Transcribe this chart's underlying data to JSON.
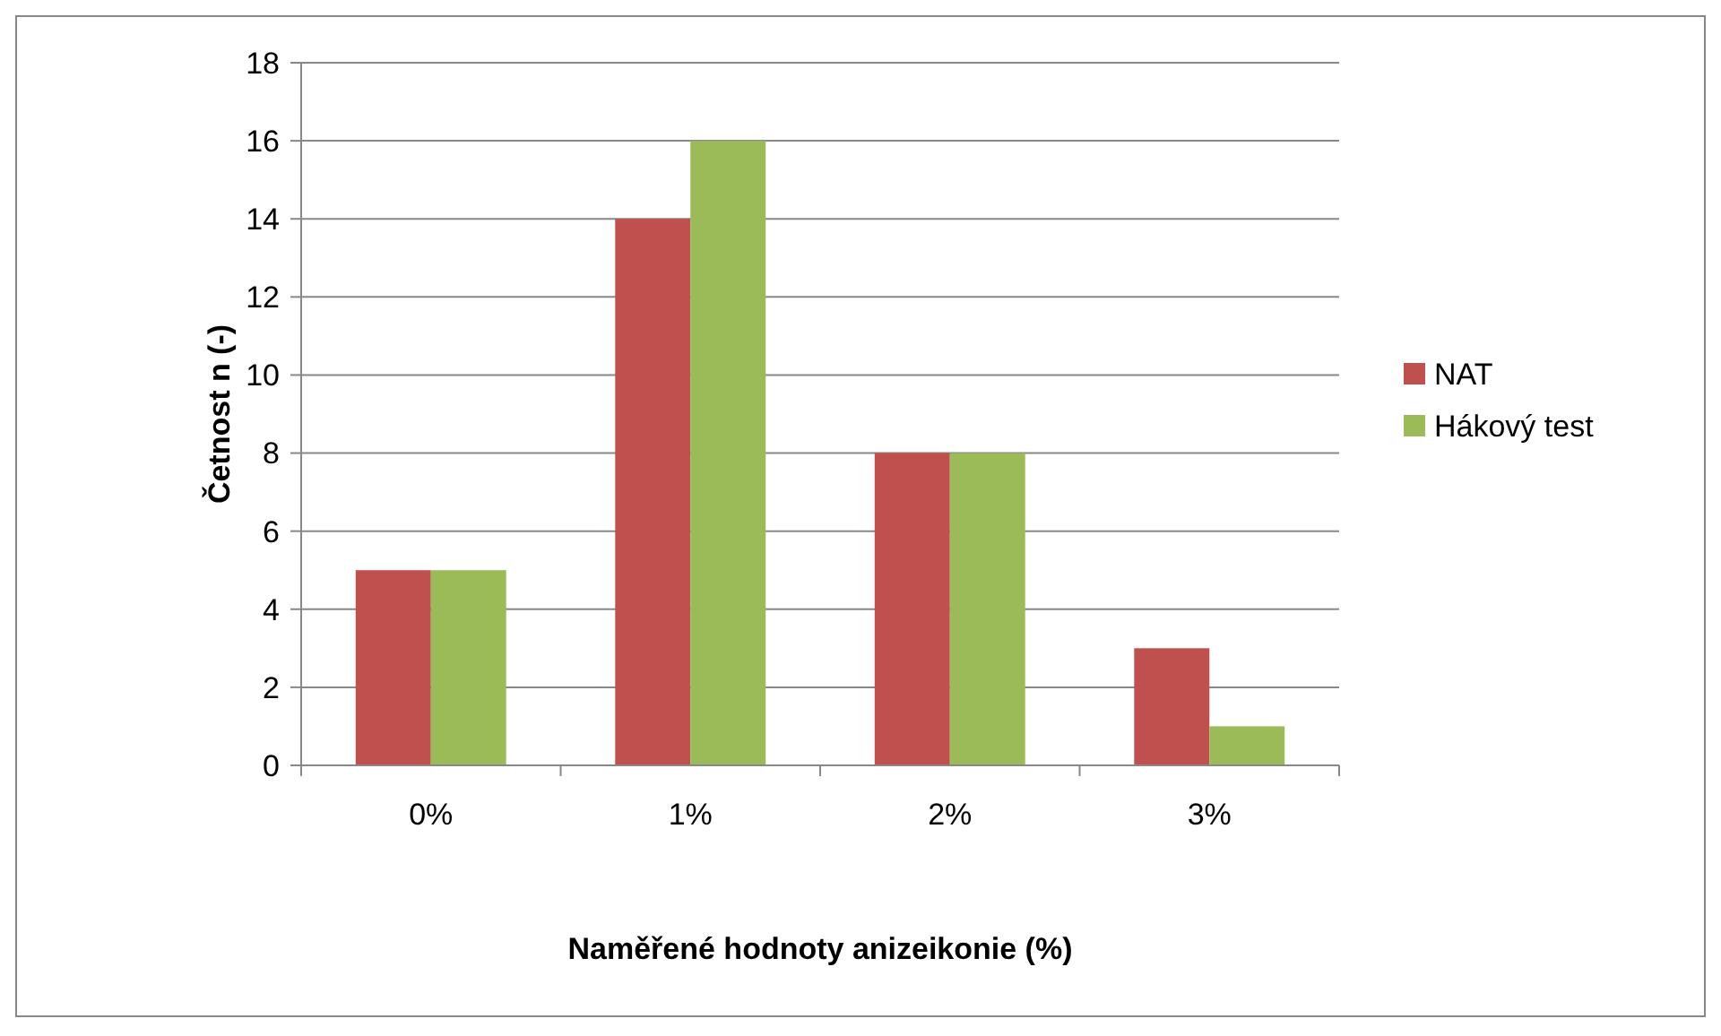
{
  "chart_data": {
    "type": "bar",
    "xlabel": "Naměřené hodnoty anizeikonie (%)",
    "ylabel": "Četnost n (-)",
    "categories": [
      "0%",
      "1%",
      "2%",
      "3%"
    ],
    "series": [
      {
        "name": "NAT",
        "color": "#c0504d",
        "values": [
          5,
          14,
          8,
          3
        ]
      },
      {
        "name": "Hákový test",
        "color": "#9bbb59",
        "values": [
          5,
          16,
          8,
          1
        ]
      }
    ],
    "ylim": [
      0,
      18
    ],
    "yticks": [
      0,
      2,
      4,
      6,
      8,
      10,
      12,
      14,
      16,
      18
    ],
    "grid": "y",
    "legend": "right"
  }
}
